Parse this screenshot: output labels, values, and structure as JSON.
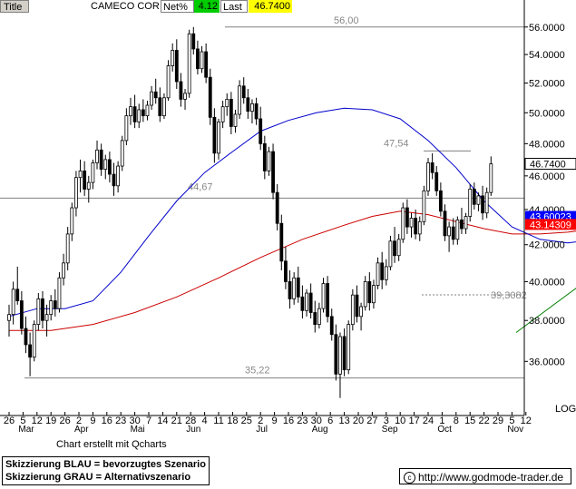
{
  "header": {
    "title_label": "Title",
    "name": "CAMECO CORP",
    "netpct_label": "Net%",
    "netpct_value": "4.12",
    "last_label": "Last",
    "last_value": "46.7400"
  },
  "colors": {
    "header_green": "#00cc00",
    "header_yellow": "#ffff00",
    "candle": "#000000",
    "ma_fast": "#0000cc",
    "ma_slow": "#cc0000",
    "trend": "#008000",
    "scenario_blue": "#0000ff",
    "scenario_gray": "#c8c8c8",
    "level_line": "#808080"
  },
  "chart_data": {
    "type": "candlestick",
    "y_scale": "log",
    "ylim": [
      34.0,
      57.0
    ],
    "y_ticks": [
      "56.0000",
      "54.0000",
      "52.0000",
      "50.0000",
      "48.0000",
      "46.0000",
      "44.0000",
      "42.0000",
      "40.0000",
      "38.0000",
      "36.0000"
    ],
    "y_scale_label": "LOG",
    "x_tick_days": [
      "26",
      "5",
      "12",
      "19",
      "26",
      "2",
      "9",
      "16",
      "23",
      "30",
      "7",
      "14",
      "21",
      "28",
      "4",
      "11",
      "18",
      "25",
      "2",
      "9",
      "16",
      "23",
      "30",
      "6",
      "13",
      "20",
      "27",
      "3",
      "10",
      "17",
      "24",
      "1",
      "8",
      "15",
      "22",
      "29",
      "5",
      "12"
    ],
    "x_months": [
      {
        "label": "Mar",
        "tick": 1
      },
      {
        "label": "Apr",
        "tick": 5
      },
      {
        "label": "Mai",
        "tick": 9
      },
      {
        "label": "Jun",
        "tick": 13
      },
      {
        "label": "Jul",
        "tick": 18
      },
      {
        "label": "Aug",
        "tick": 22
      },
      {
        "label": "Sep",
        "tick": 27
      },
      {
        "label": "Oct",
        "tick": 31
      },
      {
        "label": "Nov",
        "tick": 36
      }
    ],
    "price_labels": [
      {
        "label": "46.7400",
        "value": 46.74,
        "color": "#000000"
      },
      {
        "label": "43.60023",
        "value": 43.6,
        "color": "#0000ff"
      },
      {
        "label": "43.14309",
        "value": 43.14,
        "color": "#ff0000"
      }
    ],
    "levels": [
      {
        "label": "56,00",
        "value": 56.0
      },
      {
        "label": "47,54",
        "value": 47.54
      },
      {
        "label": "44,67",
        "value": 44.67
      },
      {
        "label": "39,3082",
        "value": 39.3082
      },
      {
        "label": "35,22",
        "value": 35.22
      }
    ],
    "ma_fast": [
      [
        0,
        38.2
      ],
      [
        2,
        38.6
      ],
      [
        4,
        38.6
      ],
      [
        6,
        39.0
      ],
      [
        8,
        40.5
      ],
      [
        10,
        42.5
      ],
      [
        12,
        44.5
      ],
      [
        14,
        46.2
      ],
      [
        16,
        47.5
      ],
      [
        18,
        48.8
      ],
      [
        20,
        49.5
      ],
      [
        22,
        50.0
      ],
      [
        24,
        50.3
      ],
      [
        26,
        50.2
      ],
      [
        28,
        49.6
      ],
      [
        30,
        48.2
      ],
      [
        32,
        46.5
      ],
      [
        34,
        44.5
      ],
      [
        36,
        43.0
      ],
      [
        38,
        42.3
      ],
      [
        40,
        42.1
      ],
      [
        42,
        42.3
      ],
      [
        44,
        42.6
      ],
      [
        46,
        42.9
      ],
      [
        48,
        43.3
      ],
      [
        49,
        43.6
      ]
    ],
    "ma_slow": [
      [
        0,
        37.5
      ],
      [
        3,
        37.5
      ],
      [
        6,
        37.8
      ],
      [
        9,
        38.4
      ],
      [
        12,
        39.2
      ],
      [
        15,
        40.2
      ],
      [
        18,
        41.3
      ],
      [
        21,
        42.3
      ],
      [
        24,
        43.1
      ],
      [
        26,
        43.6
      ],
      [
        28,
        43.9
      ],
      [
        30,
        43.7
      ],
      [
        32,
        43.3
      ],
      [
        34,
        42.9
      ],
      [
        36,
        42.6
      ],
      [
        38,
        42.6
      ],
      [
        40,
        42.7
      ],
      [
        42,
        42.9
      ],
      [
        44,
        43.0
      ],
      [
        46,
        43.1
      ],
      [
        48,
        43.15
      ],
      [
        49,
        43.14
      ]
    ],
    "trendline": [
      [
        36.3,
        37.4
      ],
      [
        52.9,
        46.9
      ]
    ],
    "scenario_blue": [
      [
        47.5,
        47.5
      ],
      [
        48.7,
        47.5
      ],
      [
        50.0,
        50.2
      ],
      [
        51.0,
        47.5
      ],
      [
        52.7,
        56.0
      ]
    ],
    "scenario_gray": [
      [
        47.5,
        43.1
      ],
      [
        48.3,
        42.9
      ],
      [
        50.5,
        39.3
      ],
      [
        52.2,
        42.6
      ]
    ],
    "candles": [
      [
        0,
        38.0,
        38.8,
        37.2,
        38.3
      ],
      [
        0.3,
        38.3,
        40.0,
        37.8,
        39.6
      ],
      [
        0.6,
        39.6,
        40.8,
        38.8,
        39.0
      ],
      [
        0.9,
        39.0,
        39.5,
        37.3,
        37.6
      ],
      [
        1.2,
        37.6,
        38.2,
        36.4,
        36.8
      ],
      [
        1.5,
        36.8,
        37.4,
        35.3,
        36.2
      ],
      [
        1.8,
        36.2,
        38.0,
        36.0,
        37.8
      ],
      [
        2.1,
        37.8,
        39.4,
        37.5,
        39.1
      ],
      [
        2.4,
        39.1,
        39.5,
        37.6,
        38.0
      ],
      [
        2.7,
        38.0,
        38.8,
        37.2,
        38.3
      ],
      [
        3.0,
        38.3,
        39.3,
        38.0,
        39.0
      ],
      [
        3.3,
        39.0,
        39.6,
        38.2,
        38.6
      ],
      [
        3.6,
        38.6,
        40.5,
        38.4,
        40.2
      ],
      [
        3.9,
        40.2,
        41.5,
        39.8,
        41.0
      ],
      [
        4.2,
        41.0,
        43.0,
        40.6,
        42.6
      ],
      [
        4.5,
        42.6,
        44.4,
        42.2,
        44.1
      ],
      [
        4.8,
        44.1,
        46.3,
        43.6,
        45.9
      ],
      [
        5.1,
        45.9,
        47.0,
        45.0,
        46.3
      ],
      [
        5.4,
        46.3,
        46.9,
        44.8,
        45.2
      ],
      [
        5.7,
        45.2,
        46.0,
        44.4,
        45.6
      ],
      [
        6.0,
        45.6,
        47.0,
        45.2,
        46.8
      ],
      [
        6.3,
        46.8,
        48.2,
        46.4,
        47.6
      ],
      [
        6.6,
        47.6,
        48.0,
        46.0,
        46.4
      ],
      [
        6.9,
        46.4,
        47.3,
        45.8,
        47.0
      ],
      [
        7.2,
        47.0,
        47.5,
        45.6,
        46.1
      ],
      [
        7.5,
        46.1,
        46.8,
        44.8,
        45.4
      ],
      [
        7.8,
        45.4,
        46.9,
        45.0,
        46.6
      ],
      [
        8.1,
        46.6,
        48.5,
        46.3,
        48.2
      ],
      [
        8.4,
        48.2,
        50.3,
        47.9,
        49.8
      ],
      [
        8.7,
        49.8,
        51.0,
        49.2,
        50.4
      ],
      [
        9.0,
        50.4,
        51.2,
        49.0,
        49.4
      ],
      [
        9.3,
        49.4,
        50.6,
        49.0,
        50.2
      ],
      [
        9.6,
        50.2,
        50.9,
        49.4,
        49.8
      ],
      [
        9.9,
        49.8,
        50.8,
        49.5,
        50.5
      ],
      [
        10.2,
        50.5,
        51.8,
        50.2,
        51.4
      ],
      [
        10.5,
        51.4,
        52.3,
        50.6,
        51.0
      ],
      [
        10.8,
        51.0,
        51.7,
        49.4,
        49.8
      ],
      [
        11.1,
        49.8,
        51.3,
        49.6,
        51.0
      ],
      [
        11.4,
        51.0,
        53.6,
        50.8,
        53.2
      ],
      [
        11.7,
        53.2,
        54.8,
        52.8,
        54.3
      ],
      [
        12.0,
        54.3,
        55.1,
        51.6,
        52.1
      ],
      [
        12.3,
        52.1,
        52.7,
        50.4,
        50.9
      ],
      [
        12.6,
        50.9,
        51.6,
        50.2,
        51.3
      ],
      [
        12.9,
        51.3,
        55.8,
        51.0,
        55.5
      ],
      [
        13.2,
        55.5,
        56.0,
        54.0,
        54.4
      ],
      [
        13.5,
        54.4,
        55.0,
        52.6,
        53.0
      ],
      [
        13.8,
        53.0,
        54.6,
        52.7,
        54.2
      ],
      [
        14.1,
        54.2,
        54.8,
        52.0,
        52.4
      ],
      [
        14.4,
        52.4,
        53.0,
        49.2,
        49.7
      ],
      [
        14.7,
        49.7,
        50.3,
        46.8,
        47.4
      ],
      [
        15.0,
        47.4,
        49.6,
        47.0,
        49.4
      ],
      [
        15.3,
        49.4,
        50.8,
        49.0,
        50.4
      ],
      [
        15.6,
        50.4,
        51.3,
        49.8,
        50.9
      ],
      [
        15.9,
        50.9,
        51.4,
        48.6,
        49.1
      ],
      [
        16.2,
        49.1,
        50.2,
        48.7,
        49.9
      ],
      [
        16.5,
        49.9,
        52.2,
        49.6,
        51.8
      ],
      [
        16.8,
        51.8,
        52.4,
        50.6,
        51.0
      ],
      [
        17.1,
        51.0,
        51.6,
        49.6,
        50.1
      ],
      [
        17.4,
        50.1,
        50.9,
        49.3,
        50.6
      ],
      [
        17.7,
        50.6,
        51.0,
        49.2,
        49.6
      ],
      [
        18.0,
        49.6,
        50.4,
        47.6,
        48.0
      ],
      [
        18.3,
        48.0,
        48.5,
        45.8,
        46.3
      ],
      [
        18.6,
        46.3,
        47.8,
        46.0,
        47.5
      ],
      [
        18.9,
        47.5,
        48.0,
        44.6,
        45.0
      ],
      [
        19.2,
        45.0,
        45.5,
        42.8,
        43.2
      ],
      [
        19.5,
        43.2,
        43.7,
        40.6,
        41.1
      ],
      [
        19.8,
        41.1,
        41.9,
        39.6,
        40.0
      ],
      [
        20.1,
        40.0,
        40.6,
        38.6,
        39.1
      ],
      [
        20.4,
        39.1,
        40.5,
        38.8,
        40.2
      ],
      [
        20.7,
        40.2,
        40.8,
        38.9,
        39.2
      ],
      [
        21.0,
        39.2,
        39.8,
        38.1,
        38.5
      ],
      [
        21.3,
        38.5,
        39.6,
        38.2,
        39.4
      ],
      [
        21.6,
        39.4,
        39.9,
        38.1,
        38.4
      ],
      [
        21.9,
        38.4,
        39.0,
        37.4,
        37.8
      ],
      [
        22.2,
        37.8,
        38.9,
        37.6,
        38.6
      ],
      [
        22.5,
        38.6,
        40.2,
        38.4,
        39.9
      ],
      [
        22.8,
        39.9,
        40.3,
        37.9,
        38.2
      ],
      [
        23.1,
        38.2,
        38.6,
        37.0,
        37.3
      ],
      [
        23.4,
        37.3,
        37.8,
        35.1,
        35.4
      ],
      [
        23.7,
        35.4,
        37.4,
        34.3,
        37.2
      ],
      [
        24.0,
        37.2,
        37.6,
        35.3,
        35.6
      ],
      [
        24.3,
        35.6,
        38.0,
        35.4,
        37.8
      ],
      [
        24.6,
        37.8,
        39.6,
        37.5,
        39.3
      ],
      [
        24.9,
        39.3,
        39.8,
        37.9,
        38.2
      ],
      [
        25.2,
        38.2,
        38.9,
        37.5,
        38.7
      ],
      [
        25.5,
        38.7,
        40.3,
        38.5,
        40.0
      ],
      [
        25.8,
        40.0,
        40.5,
        38.5,
        38.9
      ],
      [
        26.1,
        38.9,
        40.1,
        38.6,
        39.8
      ],
      [
        26.4,
        39.8,
        41.3,
        39.6,
        41.0
      ],
      [
        26.7,
        41.0,
        41.6,
        39.6,
        40.1
      ],
      [
        27.0,
        40.1,
        41.2,
        39.8,
        40.8
      ],
      [
        27.3,
        40.8,
        42.5,
        40.6,
        42.2
      ],
      [
        27.6,
        42.2,
        43.0,
        41.0,
        41.4
      ],
      [
        27.9,
        41.4,
        42.6,
        41.1,
        42.3
      ],
      [
        28.2,
        42.3,
        44.4,
        42.1,
        44.1
      ],
      [
        28.5,
        44.1,
        44.6,
        42.6,
        43.0
      ],
      [
        28.8,
        43.0,
        43.8,
        42.4,
        43.5
      ],
      [
        29.1,
        43.5,
        44.0,
        42.3,
        42.6
      ],
      [
        29.4,
        42.6,
        43.6,
        42.2,
        43.3
      ],
      [
        29.7,
        43.3,
        45.4,
        43.1,
        45.1
      ],
      [
        30.0,
        45.1,
        47.1,
        44.8,
        46.8
      ],
      [
        30.3,
        46.8,
        47.4,
        45.8,
        46.2
      ],
      [
        30.6,
        46.2,
        46.6,
        44.8,
        45.1
      ],
      [
        30.9,
        45.1,
        45.6,
        43.6,
        43.9
      ],
      [
        31.2,
        43.9,
        44.3,
        42.2,
        42.5
      ],
      [
        31.5,
        42.5,
        43.3,
        41.6,
        43.0
      ],
      [
        31.8,
        43.0,
        43.5,
        42.0,
        42.3
      ],
      [
        32.1,
        42.3,
        43.6,
        42.0,
        43.4
      ],
      [
        32.4,
        43.4,
        44.1,
        42.6,
        42.9
      ],
      [
        32.7,
        42.9,
        43.8,
        42.6,
        43.6
      ],
      [
        33.0,
        43.6,
        45.5,
        43.3,
        45.2
      ],
      [
        33.3,
        45.2,
        45.6,
        44.0,
        44.3
      ],
      [
        33.6,
        44.3,
        45.0,
        43.9,
        44.8
      ],
      [
        33.9,
        44.8,
        45.4,
        43.4,
        43.8
      ],
      [
        34.2,
        43.8,
        45.3,
        43.5,
        45.0
      ],
      [
        34.5,
        45.0,
        47.2,
        44.8,
        46.74
      ]
    ]
  },
  "footer": {
    "credit": "Chart erstellt mit Qcharts",
    "legend_blue": "Skizzierung BLAU = bevorzugtes Szenario",
    "legend_gray": "Skizzierung GRAU = Alternativszenario",
    "copyright_symbol": "c",
    "url": "http://www.godmode-trader.de"
  }
}
